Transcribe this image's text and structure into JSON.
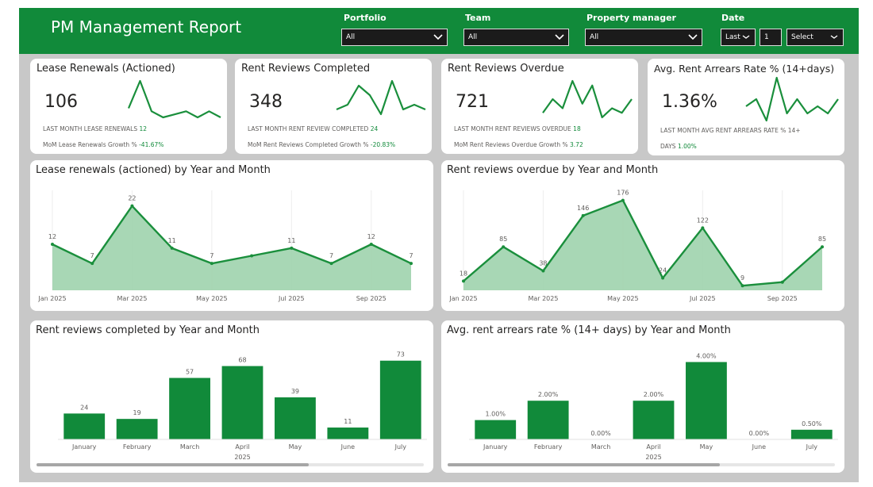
{
  "header": {
    "title": "PM Management Report",
    "filters": [
      {
        "label": "Portfolio",
        "value": "All"
      },
      {
        "label": "Team",
        "value": "All"
      },
      {
        "label": "Property manager",
        "value": "All"
      }
    ],
    "date": {
      "label": "Date",
      "mode": "Last",
      "count": "1",
      "unit": "Select"
    }
  },
  "colors": {
    "brand": "#118a3a",
    "line": "#1a8f3c",
    "area": "#9fd3ad"
  },
  "kpis": [
    {
      "title": "Lease Renewals (Actioned)",
      "value": "106",
      "line1_label": "LAST MONTH LEASE RENEWALS",
      "line1_value": "12",
      "line2_label": "MoM Lease Renewals Growth %",
      "line2_value": "-41.67%",
      "spark": [
        5,
        14,
        4,
        2,
        3,
        4,
        2,
        4,
        2
      ]
    },
    {
      "title": "Rent Reviews Completed",
      "value": "348",
      "line1_label": "LAST MONTH RENT REVIEW COMPLETED",
      "line1_value": "24",
      "line2_label": "MoM Rent Reviews Completed Growth %",
      "line2_value": "-20.83%",
      "spark": [
        3,
        4,
        8,
        6,
        2,
        9,
        3,
        4,
        3
      ]
    },
    {
      "title": "Rent Reviews Overdue",
      "value": "721",
      "line1_label": "LAST MONTH RENT REVIEWS OVERDUE",
      "line1_value": "18",
      "line2_label": "MoM Rent Reviews Overdue Growth %",
      "line2_value": "3.72",
      "spark": [
        2,
        5,
        3,
        9,
        4,
        8,
        1,
        3,
        2,
        5
      ]
    },
    {
      "title": "Avg. Rent Arrears Rate % (14+days)",
      "value": "1.36%",
      "line1_label": "LAST MONTH AVG RENT ARREARS RATE % 14+",
      "line1_value": "",
      "line2_label": "DAYS",
      "line2_value": "1.00%",
      "spark": [
        3,
        4,
        1,
        7,
        2,
        4,
        2,
        3,
        2,
        4
      ]
    }
  ],
  "chart_data": [
    {
      "type": "area",
      "title": "Lease renewals (actioned) by Year and Month",
      "x": [
        "Jan 2025",
        "Feb 2025",
        "Mar 2025",
        "Apr 2025",
        "May 2025",
        "Jun 2025",
        "Jul 2025",
        "Aug 2025",
        "Sep 2025",
        "Oct 2025"
      ],
      "values": [
        12,
        7,
        22,
        11,
        7,
        9,
        11,
        7,
        12,
        7
      ],
      "labels": [
        "12",
        "7",
        "22",
        "11",
        "7",
        "",
        "11",
        "7",
        "12",
        "7"
      ],
      "xticks": [
        "Jan 2025",
        "Mar 2025",
        "May 2025",
        "Jul 2025",
        "Sep 2025"
      ],
      "ylim": [
        0,
        24
      ]
    },
    {
      "type": "area",
      "title": "Rent reviews overdue by Year and Month",
      "x": [
        "Jan 2025",
        "Feb 2025",
        "Mar 2025",
        "Apr 2025",
        "May 2025",
        "Jun 2025",
        "Jul 2025",
        "Aug 2025",
        "Sep 2025",
        "Oct 2025"
      ],
      "values": [
        18,
        85,
        38,
        146,
        176,
        24,
        122,
        9,
        16,
        85
      ],
      "labels": [
        "18",
        "85",
        "38",
        "146",
        "176",
        "24",
        "122",
        "9",
        "",
        "85"
      ],
      "xticks": [
        "Jan 2025",
        "Mar 2025",
        "May 2025",
        "Jul 2025",
        "Sep 2025"
      ],
      "ylim": [
        0,
        180
      ]
    },
    {
      "type": "bar",
      "title": "Rent reviews completed by Year and Month",
      "categories": [
        "January",
        "February",
        "March",
        "April",
        "May",
        "June",
        "July"
      ],
      "values": [
        24,
        19,
        57,
        68,
        39,
        11,
        73
      ],
      "labels": [
        "24",
        "19",
        "57",
        "68",
        "39",
        "11",
        "73"
      ],
      "year_label": "2025",
      "ylim": [
        0,
        75
      ]
    },
    {
      "type": "bar",
      "title": "Avg. rent arrears rate % (14+ days) by Year and Month",
      "categories": [
        "January",
        "February",
        "March",
        "April",
        "May",
        "June",
        "July"
      ],
      "values": [
        1.0,
        2.0,
        0,
        2.0,
        4.0,
        0,
        0.5
      ],
      "labels": [
        "1.00%",
        "2.00%",
        "0.00%",
        "2.00%",
        "4.00%",
        "0.00%",
        "0.50%"
      ],
      "year_label": "2025",
      "ylim": [
        0,
        4.1
      ]
    }
  ]
}
